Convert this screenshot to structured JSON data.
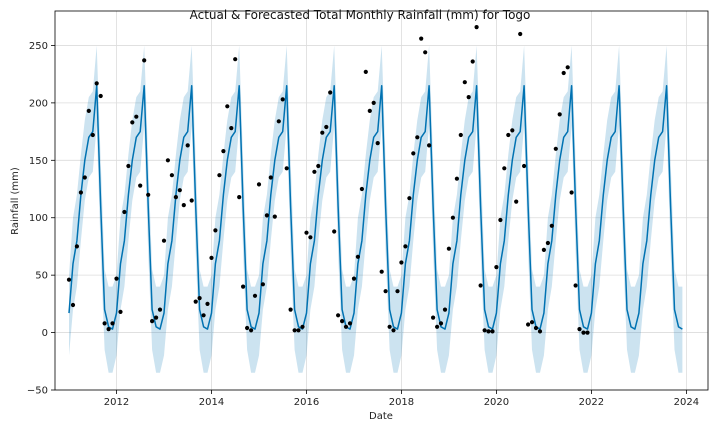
{
  "chart_data": {
    "type": "line",
    "title": "Actual & Forecasted Total Monthly Rainfall (mm) for Togo",
    "xlabel": "Date",
    "ylabel": "Rainfall (mm)",
    "xlim": [
      "2010-09-15",
      "2024-06-15"
    ],
    "ylim": [
      -50,
      280
    ],
    "grid": true,
    "x_ticks": [
      "2012",
      "2014",
      "2016",
      "2018",
      "2020",
      "2022",
      "2024"
    ],
    "y_ticks": [
      -50,
      0,
      50,
      100,
      150,
      200,
      250
    ],
    "colors": {
      "forecast_line": "#0072b2",
      "interval": "#0072b2",
      "actual": "#000000"
    },
    "monthly_profile": {
      "months": [
        "Jan",
        "Feb",
        "Mar",
        "Apr",
        "May",
        "Jun",
        "Jul",
        "Aug",
        "Sep",
        "Oct",
        "Nov",
        "Dec"
      ],
      "forecast": [
        17,
        60,
        80,
        120,
        150,
        170,
        175,
        215,
        110,
        20,
        5,
        3
      ],
      "lower": [
        -20,
        20,
        40,
        80,
        115,
        135,
        140,
        180,
        70,
        -15,
        -35,
        -35
      ],
      "upper": [
        50,
        100,
        120,
        155,
        185,
        205,
        210,
        250,
        150,
        55,
        40,
        40
      ]
    },
    "forecast_x": [
      "2011-01",
      "2011-02",
      "2011-03",
      "2011-04",
      "2011-05",
      "2011-06",
      "2011-07",
      "2011-08",
      "2011-09",
      "2011-10",
      "2011-11",
      "2011-12",
      "2012-01",
      "2012-02",
      "2012-03",
      "2012-04",
      "2012-05",
      "2012-06",
      "2012-07",
      "2012-08",
      "2012-09",
      "2012-10",
      "2012-11",
      "2012-12",
      "2013-01",
      "2013-02",
      "2013-03",
      "2013-04",
      "2013-05",
      "2013-06",
      "2013-07",
      "2013-08",
      "2013-09",
      "2013-10",
      "2013-11",
      "2013-12",
      "2014-01",
      "2014-02",
      "2014-03",
      "2014-04",
      "2014-05",
      "2014-06",
      "2014-07",
      "2014-08",
      "2014-09",
      "2014-10",
      "2014-11",
      "2014-12",
      "2015-01",
      "2015-02",
      "2015-03",
      "2015-04",
      "2015-05",
      "2015-06",
      "2015-07",
      "2015-08",
      "2015-09",
      "2015-10",
      "2015-11",
      "2015-12",
      "2016-01",
      "2016-02",
      "2016-03",
      "2016-04",
      "2016-05",
      "2016-06",
      "2016-07",
      "2016-08",
      "2016-09",
      "2016-10",
      "2016-11",
      "2016-12",
      "2017-01",
      "2017-02",
      "2017-03",
      "2017-04",
      "2017-05",
      "2017-06",
      "2017-07",
      "2017-08",
      "2017-09",
      "2017-10",
      "2017-11",
      "2017-12",
      "2018-01",
      "2018-02",
      "2018-03",
      "2018-04",
      "2018-05",
      "2018-06",
      "2018-07",
      "2018-08",
      "2018-09",
      "2018-10",
      "2018-11",
      "2018-12",
      "2019-01",
      "2019-02",
      "2019-03",
      "2019-04",
      "2019-05",
      "2019-06",
      "2019-07",
      "2019-08",
      "2019-09",
      "2019-10",
      "2019-11",
      "2019-12",
      "2020-01",
      "2020-02",
      "2020-03",
      "2020-04",
      "2020-05",
      "2020-06",
      "2020-07",
      "2020-08",
      "2020-09",
      "2020-10",
      "2020-11",
      "2020-12",
      "2021-01",
      "2021-02",
      "2021-03",
      "2021-04",
      "2021-05",
      "2021-06",
      "2021-07",
      "2021-08",
      "2021-09",
      "2021-10",
      "2021-11",
      "2021-12",
      "2022-01",
      "2022-02",
      "2022-03",
      "2022-04",
      "2022-05",
      "2022-06",
      "2022-07",
      "2022-08",
      "2022-09",
      "2022-10",
      "2022-11",
      "2022-12",
      "2023-01",
      "2023-02",
      "2023-03",
      "2023-04",
      "2023-05",
      "2023-06",
      "2023-07",
      "2023-08",
      "2023-09",
      "2023-10",
      "2023-11",
      "2023-12"
    ],
    "actual": {
      "name": "",
      "x": [
        "2011-01",
        "2011-02",
        "2011-03",
        "2011-04",
        "2011-05",
        "2011-06",
        "2011-07",
        "2011-08",
        "2011-09",
        "2011-10",
        "2011-11",
        "2011-12",
        "2012-01",
        "2012-02",
        "2012-03",
        "2012-04",
        "2012-05",
        "2012-06",
        "2012-07",
        "2012-08",
        "2012-09",
        "2012-10",
        "2012-11",
        "2012-12",
        "2013-01",
        "2013-02",
        "2013-03",
        "2013-04",
        "2013-05",
        "2013-06",
        "2013-07",
        "2013-08",
        "2013-09",
        "2013-10",
        "2013-11",
        "2013-12",
        "2014-01",
        "2014-02",
        "2014-03",
        "2014-04",
        "2014-05",
        "2014-06",
        "2014-07",
        "2014-08",
        "2014-09",
        "2014-10",
        "2014-11",
        "2014-12",
        "2015-01",
        "2015-02",
        "2015-03",
        "2015-04",
        "2015-05",
        "2015-06",
        "2015-07",
        "2015-08",
        "2015-09",
        "2015-10",
        "2015-11",
        "2015-12",
        "2016-01",
        "2016-02",
        "2016-03",
        "2016-04",
        "2016-05",
        "2016-06",
        "2016-07",
        "2016-08",
        "2016-09",
        "2016-10",
        "2016-11",
        "2016-12",
        "2017-01",
        "2017-02",
        "2017-03",
        "2017-04",
        "2017-05",
        "2017-06",
        "2017-07",
        "2017-08",
        "2017-09",
        "2017-10",
        "2017-11",
        "2017-12",
        "2018-01",
        "2018-02",
        "2018-03",
        "2018-04",
        "2018-05",
        "2018-06",
        "2018-07",
        "2018-08",
        "2018-09",
        "2018-10",
        "2018-11",
        "2018-12",
        "2019-01",
        "2019-02",
        "2019-03",
        "2019-04",
        "2019-05",
        "2019-06",
        "2019-07",
        "2019-08",
        "2019-09",
        "2019-10",
        "2019-11",
        "2019-12",
        "2020-01",
        "2020-02",
        "2020-03",
        "2020-04",
        "2020-05",
        "2020-06",
        "2020-07",
        "2020-08",
        "2020-09",
        "2020-10",
        "2020-11",
        "2020-12",
        "2021-01",
        "2021-02",
        "2021-03",
        "2021-04",
        "2021-05",
        "2021-06",
        "2021-07",
        "2021-08",
        "2021-09",
        "2021-10",
        "2021-11",
        "2021-12"
      ],
      "y": [
        46,
        24,
        75,
        122,
        135,
        193,
        172,
        217,
        206,
        8,
        3,
        8,
        47,
        18,
        105,
        145,
        183,
        188,
        128,
        237,
        120,
        10,
        13,
        20,
        80,
        150,
        137,
        118,
        124,
        111,
        163,
        115,
        27,
        30,
        15,
        25,
        65,
        89,
        137,
        158,
        197,
        178,
        238,
        118,
        40,
        4,
        2,
        32,
        129,
        42,
        102,
        135,
        101,
        184,
        203,
        143,
        20,
        2,
        2,
        5,
        87,
        83,
        140,
        145,
        174,
        179,
        209,
        88,
        15,
        10,
        5,
        8,
        47,
        66,
        125,
        227,
        193,
        200,
        165,
        53,
        36,
        5,
        2,
        36,
        61,
        75,
        117,
        156,
        170,
        256,
        244,
        163,
        13,
        5,
        8,
        20,
        73,
        100,
        134,
        172,
        218,
        205,
        236,
        266,
        41,
        2,
        1,
        1,
        57,
        98,
        143,
        172,
        176,
        114,
        260,
        145,
        7,
        9,
        4,
        1,
        72,
        78,
        93,
        160,
        190,
        226,
        231,
        122,
        41,
        3,
        0,
        0
      ]
    }
  }
}
